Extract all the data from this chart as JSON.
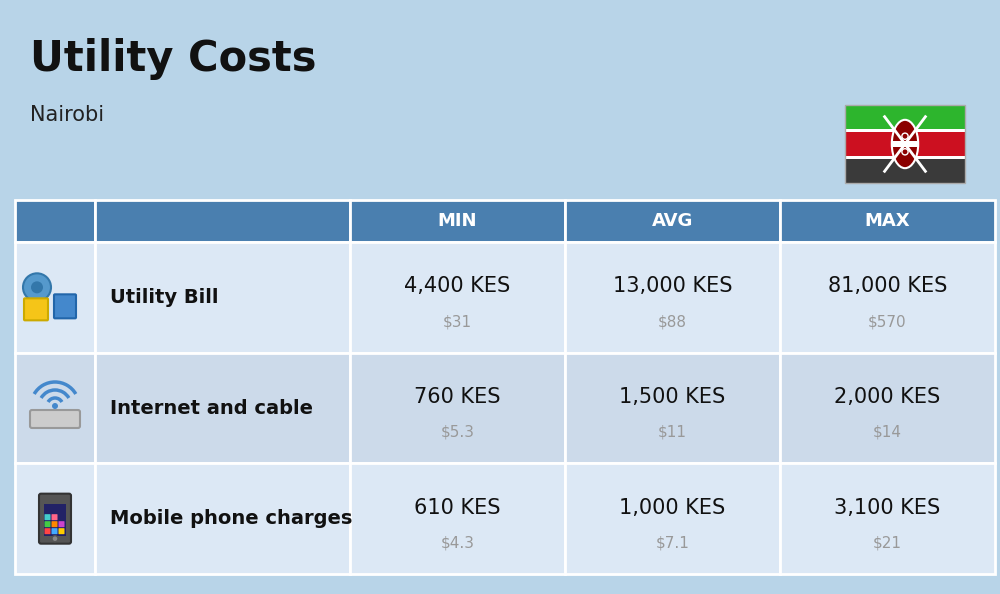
{
  "title": "Utility Costs",
  "subtitle": "Nairobi",
  "background_color": "#b8d4e8",
  "header_bg_color": "#4a7faf",
  "header_text_color": "#ffffff",
  "row_colors": [
    "#dce8f5",
    "#ccdaea"
  ],
  "headers": [
    "MIN",
    "AVG",
    "MAX"
  ],
  "rows": [
    {
      "label": "Utility Bill",
      "min_kes": "4,400 KES",
      "min_usd": "$31",
      "avg_kes": "13,000 KES",
      "avg_usd": "$88",
      "max_kes": "81,000 KES",
      "max_usd": "$570",
      "icon": "utility"
    },
    {
      "label": "Internet and cable",
      "min_kes": "760 KES",
      "min_usd": "$5.3",
      "avg_kes": "1,500 KES",
      "avg_usd": "$11",
      "max_kes": "2,000 KES",
      "max_usd": "$14",
      "icon": "internet"
    },
    {
      "label": "Mobile phone charges",
      "min_kes": "610 KES",
      "min_usd": "$4.3",
      "avg_kes": "1,000 KES",
      "avg_usd": "$7.1",
      "max_kes": "3,100 KES",
      "max_usd": "$21",
      "icon": "mobile"
    }
  ],
  "title_fontsize": 30,
  "subtitle_fontsize": 15,
  "header_fontsize": 13,
  "kes_fontsize": 15,
  "usd_fontsize": 11,
  "label_fontsize": 14
}
